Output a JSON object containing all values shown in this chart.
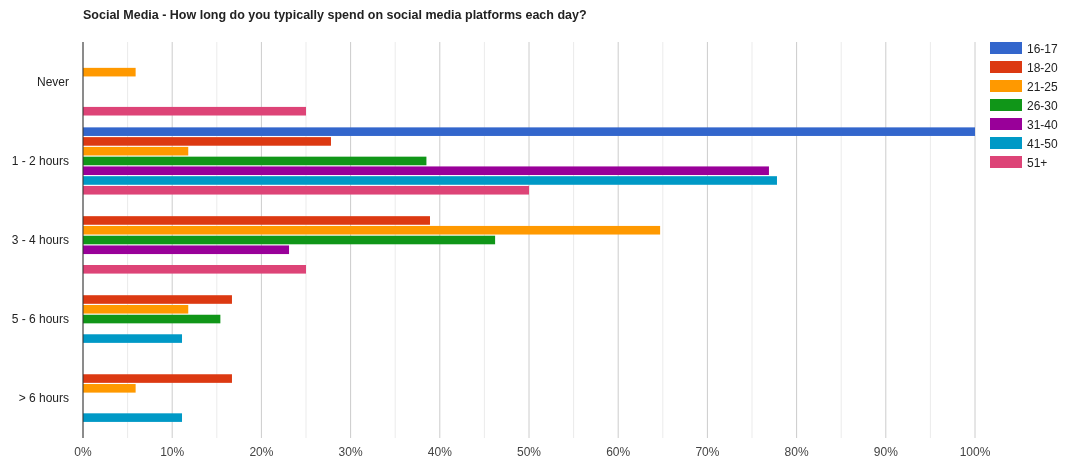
{
  "chart_data": {
    "type": "bar",
    "orientation": "horizontal",
    "title": "Social Media - How long do you typically spend on social media platforms each day?",
    "categories": [
      "Never",
      "1 - 2 hours",
      "3 - 4 hours",
      "5 - 6 hours",
      "> 6 hours"
    ],
    "series": [
      {
        "name": "16-17",
        "color": "#3366cc",
        "values": [
          null,
          100,
          null,
          null,
          null
        ]
      },
      {
        "name": "18-20",
        "color": "#dc3912",
        "values": [
          null,
          27.8,
          38.9,
          16.7,
          16.7
        ]
      },
      {
        "name": "21-25",
        "color": "#ff9900",
        "values": [
          5.9,
          11.8,
          64.7,
          11.8,
          5.9
        ]
      },
      {
        "name": "26-30",
        "color": "#109618",
        "values": [
          null,
          38.5,
          46.2,
          15.4,
          null
        ]
      },
      {
        "name": "31-40",
        "color": "#990099",
        "values": [
          null,
          76.9,
          23.1,
          null,
          null
        ]
      },
      {
        "name": "41-50",
        "color": "#0099c6",
        "values": [
          null,
          77.8,
          null,
          11.1,
          11.1
        ]
      },
      {
        "name": "51+",
        "color": "#dd4477",
        "values": [
          25,
          50,
          25,
          null,
          null
        ]
      }
    ],
    "xlim": [
      0,
      100
    ],
    "xticks": [
      {
        "value": 0,
        "label": "0%"
      },
      {
        "value": 5,
        "label": null
      },
      {
        "value": 10,
        "label": "10%"
      },
      {
        "value": 15,
        "label": null
      },
      {
        "value": 20,
        "label": "20%"
      },
      {
        "value": 25,
        "label": null
      },
      {
        "value": 30,
        "label": "30%"
      },
      {
        "value": 35,
        "label": null
      },
      {
        "value": 40,
        "label": "40%"
      },
      {
        "value": 45,
        "label": null
      },
      {
        "value": 50,
        "label": "50%"
      },
      {
        "value": 55,
        "label": null
      },
      {
        "value": 60,
        "label": "60%"
      },
      {
        "value": 65,
        "label": null
      },
      {
        "value": 70,
        "label": "70%"
      },
      {
        "value": 75,
        "label": null
      },
      {
        "value": 80,
        "label": "80%"
      },
      {
        "value": 85,
        "label": null
      },
      {
        "value": 90,
        "label": "90%"
      },
      {
        "value": 95,
        "label": null
      },
      {
        "value": 100,
        "label": "100%"
      }
    ],
    "grid": "x",
    "legend": "top right"
  }
}
